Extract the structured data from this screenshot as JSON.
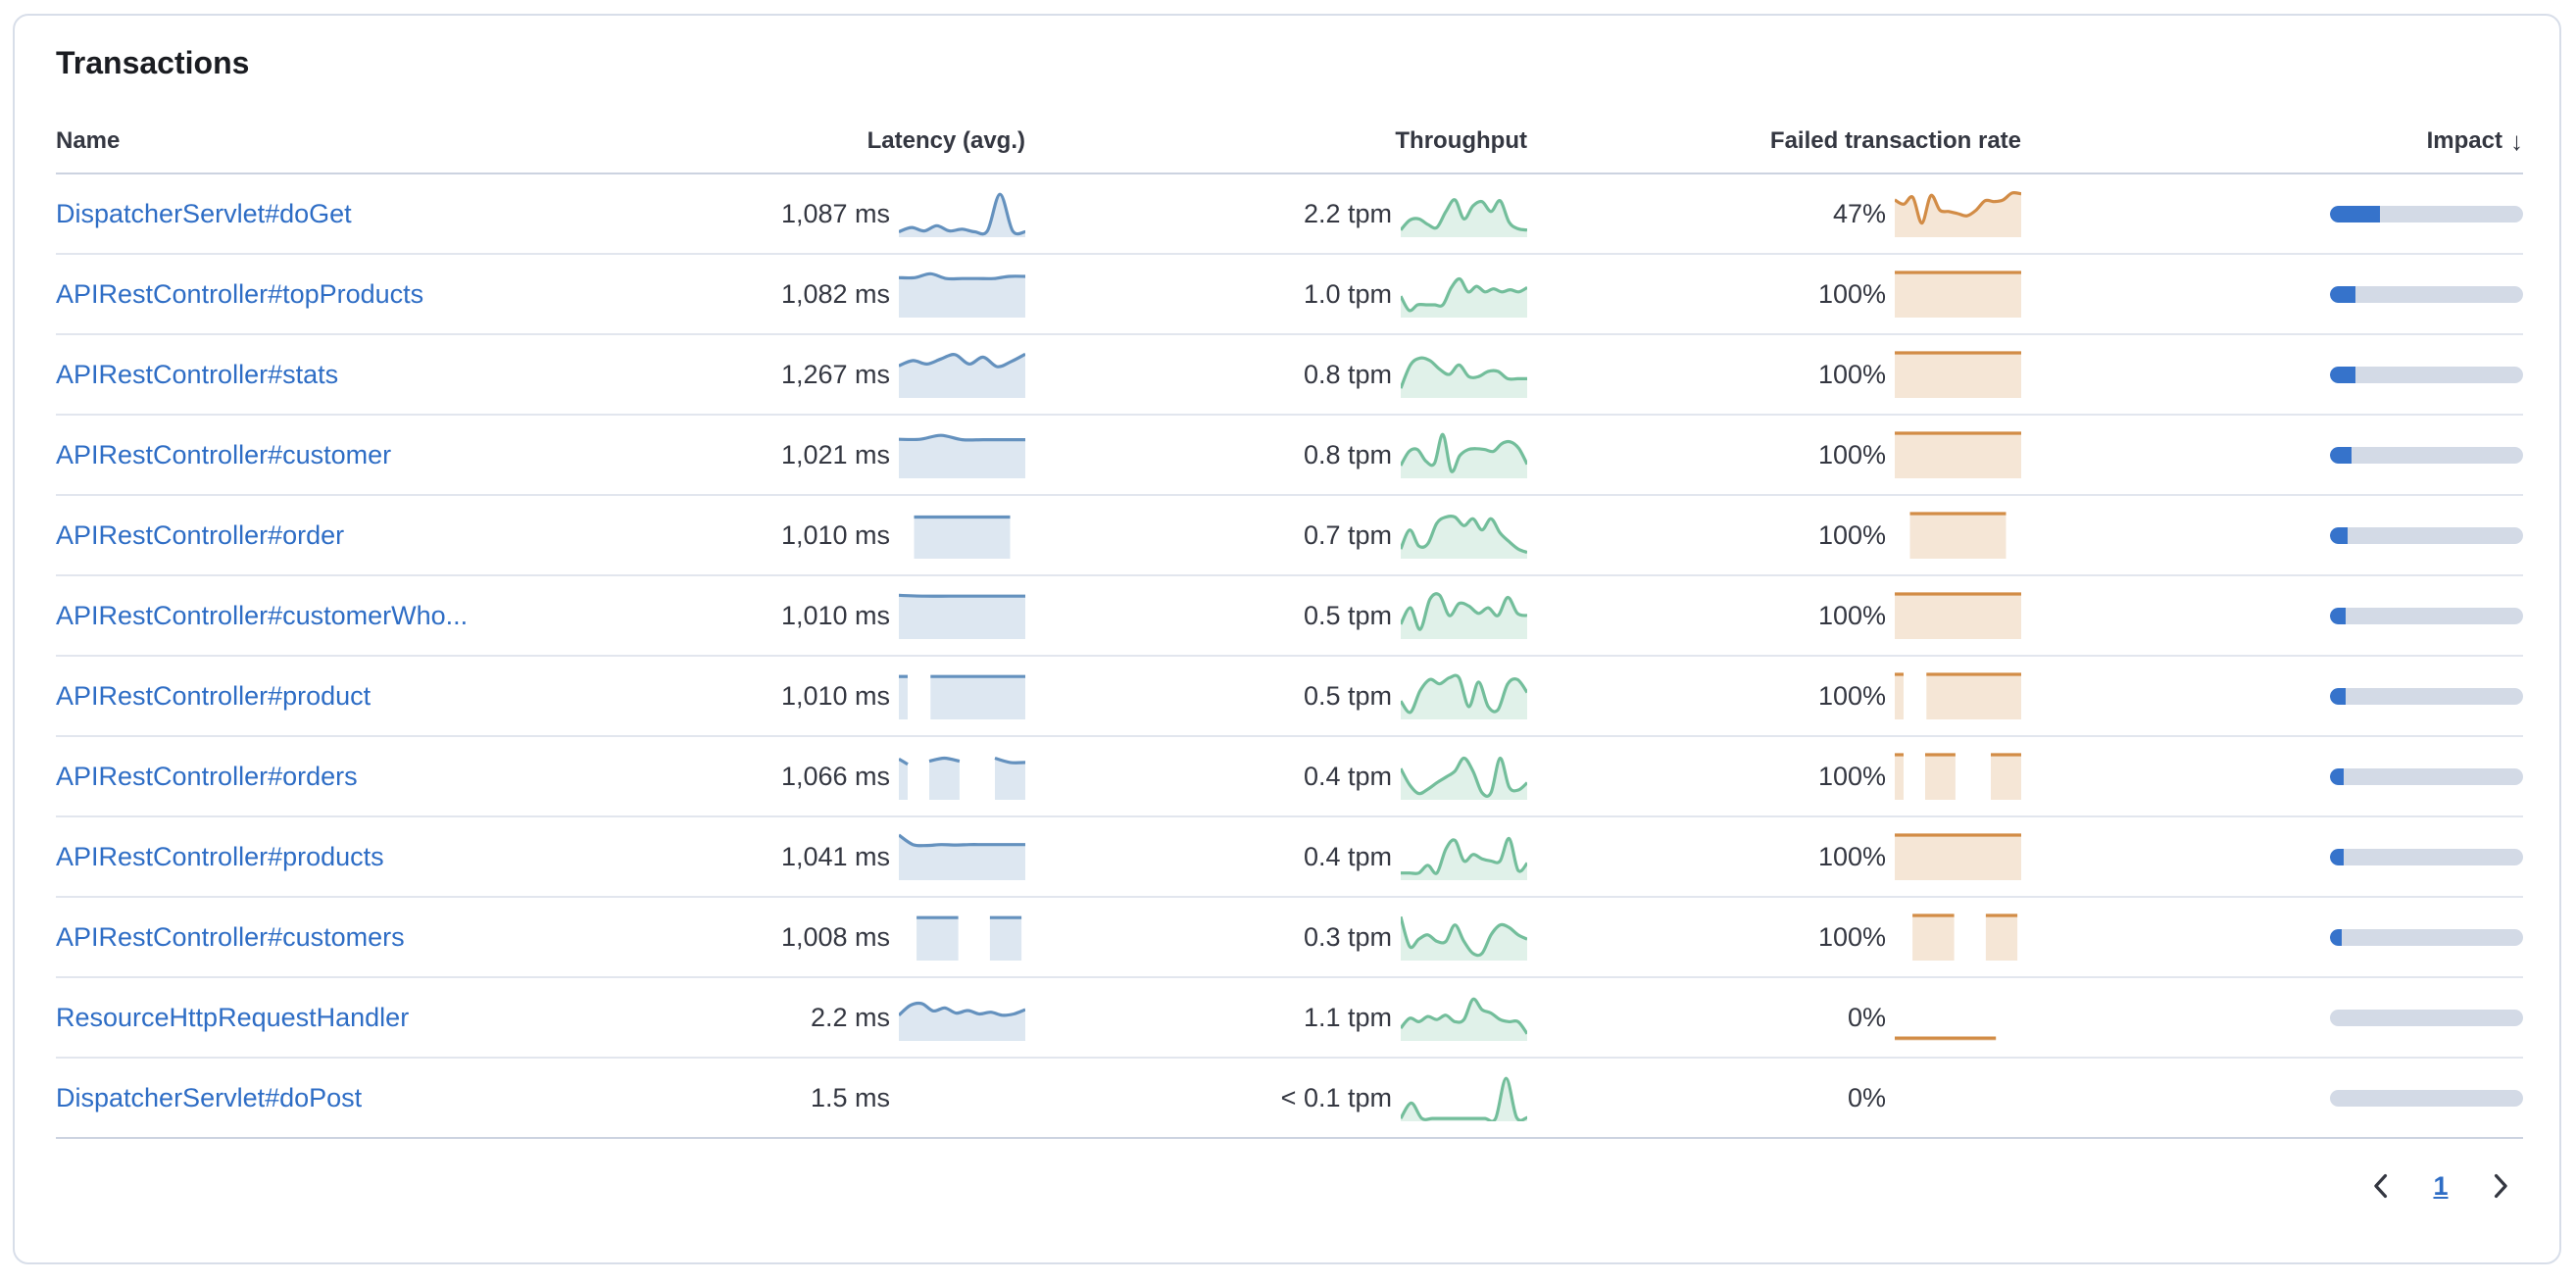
{
  "card": {
    "title": "Transactions"
  },
  "table": {
    "columns": [
      {
        "label": "Name"
      },
      {
        "label": "Latency (avg.)"
      },
      {
        "label": "Throughput"
      },
      {
        "label": "Failed transaction rate"
      },
      {
        "label": "Impact",
        "sort": "desc",
        "sort_icon": "↓"
      }
    ],
    "rows": [
      {
        "name": "DispatcherServlet#doGet",
        "latency": "1,087 ms",
        "throughput": "2.2 tpm",
        "failed_rate": "47%",
        "impact_pct": 26,
        "latency_spark": [
          [
            0,
            1,
            [
              8,
              18,
              10,
              22,
              10,
              14,
              8,
              10,
              95,
              10,
              8
            ]
          ]
        ],
        "throughput_spark": [
          [
            0,
            1,
            [
              12,
              35,
              38,
              25,
              18,
              55,
              82,
              38,
              68,
              78,
              55,
              80,
              30,
              15,
              12
            ]
          ]
        ],
        "failed_spark": [
          [
            0,
            1,
            [
              82,
              72,
              88,
              28,
              92,
              58,
              55,
              50,
              45,
              58,
              80,
              78,
              82,
              98,
              96
            ]
          ]
        ]
      },
      {
        "name": "APIRestController#topProducts",
        "latency": "1,082 ms",
        "throughput": "1.0 tpm",
        "failed_rate": "100%",
        "impact_pct": 13,
        "latency_spark": [
          [
            0,
            1,
            [
              88,
              88,
              97,
              86,
              86,
              86,
              86,
              91,
              91
            ]
          ]
        ],
        "throughput_spark": [
          [
            0,
            1,
            [
              45,
              12,
              25,
              25,
              25,
              25,
              65,
              85,
              55,
              68,
              55,
              62,
              55,
              60,
              55,
              65
            ]
          ]
        ],
        "failed_spark": [
          [
            0,
            1,
            [
              100,
              100
            ]
          ]
        ]
      },
      {
        "name": "APIRestController#stats",
        "latency": "1,267 ms",
        "throughput": "0.8 tpm",
        "failed_rate": "100%",
        "impact_pct": 13,
        "latency_spark": [
          [
            0,
            1,
            [
              70,
              82,
              74,
              86,
              96,
              74,
              90,
              68,
              80,
              97
            ]
          ]
        ],
        "throughput_spark": [
          [
            0,
            1,
            [
              18,
              72,
              88,
              82,
              62,
              50,
              72,
              45,
              45,
              57,
              57,
              40,
              40,
              40
            ]
          ]
        ],
        "failed_spark": [
          [
            0,
            1,
            [
              100,
              100
            ]
          ]
        ]
      },
      {
        "name": "APIRestController#customer",
        "latency": "1,021 ms",
        "throughput": "0.8 tpm",
        "failed_rate": "100%",
        "impact_pct": 11,
        "latency_spark": [
          [
            0,
            1,
            [
              86,
              86,
              95,
              85,
              85,
              85,
              85
            ]
          ]
        ],
        "throughput_spark": [
          [
            0,
            1,
            [
              25,
              58,
              62,
              35,
              30,
              97,
              12,
              48,
              62,
              64,
              62,
              58,
              76,
              80,
              65,
              28
            ]
          ]
        ],
        "failed_spark": [
          [
            0,
            1,
            [
              100,
              100
            ]
          ]
        ]
      },
      {
        "name": "APIRestController#order",
        "latency": "1,010 ms",
        "throughput": "0.7 tpm",
        "failed_rate": "100%",
        "impact_pct": 9,
        "latency_spark": [
          [
            0.12,
            0.88,
            [
              92,
              92
            ]
          ]
        ],
        "throughput_spark": [
          [
            0,
            1,
            [
              18,
              62,
              25,
              30,
              78,
              92,
              92,
              72,
              88,
              62,
              88,
              55,
              35,
              18,
              10
            ]
          ]
        ],
        "failed_spark": [
          [
            0.12,
            0.88,
            [
              100,
              100
            ]
          ]
        ]
      },
      {
        "name": "APIRestController#customerWho...",
        "latency": "1,010 ms",
        "throughput": "0.5 tpm",
        "failed_rate": "100%",
        "impact_pct": 8,
        "latency_spark": [
          [
            0,
            1,
            [
              97,
              95,
              95,
              95,
              95,
              95
            ]
          ]
        ],
        "throughput_spark": [
          [
            0,
            1,
            [
              30,
              68,
              18,
              88,
              97,
              50,
              78,
              72,
              55,
              68,
              50,
              92,
              55,
              50
            ]
          ]
        ],
        "failed_spark": [
          [
            0,
            1,
            [
              100,
              100
            ]
          ]
        ]
      },
      {
        "name": "APIRestController#product",
        "latency": "1,010 ms",
        "throughput": "0.5 tpm",
        "failed_rate": "100%",
        "impact_pct": 8,
        "latency_spark": [
          [
            0,
            0.07,
            [
              95,
              95
            ]
          ],
          [
            0.25,
            1,
            [
              95,
              95
            ]
          ]
        ],
        "throughput_spark": [
          [
            0,
            1,
            [
              38,
              12,
              62,
              88,
              78,
              92,
              92,
              25,
              82,
              25,
              18,
              78,
              88,
              58
            ]
          ]
        ],
        "failed_spark": [
          [
            0,
            0.07,
            [
              100,
              100
            ]
          ],
          [
            0.25,
            1,
            [
              100,
              100
            ]
          ]
        ]
      },
      {
        "name": "APIRestController#orders",
        "latency": "1,066 ms",
        "throughput": "0.4 tpm",
        "failed_rate": "100%",
        "impact_pct": 7,
        "latency_spark": [
          [
            0,
            0.07,
            [
              90,
              78
            ]
          ],
          [
            0.24,
            0.48,
            [
              85,
              92,
              85
            ]
          ],
          [
            0.76,
            1,
            [
              92,
              82,
              82
            ]
          ]
        ],
        "throughput_spark": [
          [
            0,
            1,
            [
              68,
              30,
              10,
              20,
              35,
              48,
              62,
              92,
              62,
              12,
              12,
              92,
              25,
              18,
              35
            ]
          ]
        ],
        "failed_spark": [
          [
            0,
            0.07,
            [
              100,
              100
            ]
          ],
          [
            0.24,
            0.48,
            [
              100,
              100
            ]
          ],
          [
            0.76,
            1,
            [
              100,
              100
            ]
          ]
        ]
      },
      {
        "name": "APIRestController#products",
        "latency": "1,041 ms",
        "throughput": "0.4 tpm",
        "failed_rate": "100%",
        "impact_pct": 7,
        "latency_spark": [
          [
            0,
            1,
            [
              100,
              78,
              76,
              78,
              77,
              78,
              78,
              78,
              78,
              78
            ]
          ]
        ],
        "throughput_spark": [
          [
            0,
            1,
            [
              12,
              12,
              12,
              30,
              12,
              68,
              88,
              40,
              55,
              45,
              40,
              40,
              92,
              18,
              35
            ]
          ]
        ],
        "failed_spark": [
          [
            0,
            1,
            [
              100,
              100
            ]
          ]
        ]
      },
      {
        "name": "APIRestController#customers",
        "latency": "1,008 ms",
        "throughput": "0.3 tpm",
        "failed_rate": "100%",
        "impact_pct": 6,
        "latency_spark": [
          [
            0.14,
            0.47,
            [
              95,
              95
            ]
          ],
          [
            0.72,
            0.97,
            [
              95,
              95
            ]
          ]
        ],
        "throughput_spark": [
          [
            0,
            1,
            [
              97,
              28,
              45,
              55,
              40,
              40,
              78,
              40,
              12,
              12,
              55,
              78,
              72,
              55,
              45
            ]
          ]
        ],
        "failed_spark": [
          [
            0.14,
            0.47,
            [
              100,
              100
            ]
          ],
          [
            0.72,
            0.97,
            [
              100,
              100
            ]
          ]
        ]
      },
      {
        "name": "ResourceHttpRequestHandler",
        "latency": "2.2 ms",
        "throughput": "1.1 tpm",
        "failed_rate": "0%",
        "impact_pct": 0,
        "latency_spark": [
          [
            0,
            1,
            [
              55,
              78,
              82,
              65,
              72,
              60,
              66,
              58,
              62,
              55,
              58,
              68
            ]
          ]
        ],
        "throughput_spark": [
          [
            0,
            1,
            [
              25,
              48,
              40,
              52,
              45,
              55,
              40,
              45,
              92,
              68,
              60,
              45,
              40,
              40,
              12
            ]
          ]
        ],
        "failed_spark": [
          [
            0,
            0.8,
            [
              2,
              2
            ]
          ]
        ]
      },
      {
        "name": "DispatcherServlet#doPost",
        "latency": "1.5 ms",
        "throughput": "< 0.1 tpm",
        "failed_rate": "0%",
        "impact_pct": 0,
        "latency_spark": [],
        "throughput_spark": [
          [
            0,
            1,
            [
              2,
              38,
              2,
              2,
              2,
              2,
              2,
              2,
              2,
              2,
              95,
              4,
              4
            ]
          ]
        ],
        "failed_spark": []
      }
    ]
  },
  "pagination": {
    "current_page": "1"
  },
  "colors": {
    "link": "#2e6dc5",
    "title": "#1a1c21",
    "text": "#343741",
    "latency_line": "#6491be",
    "throughput_line": "#73be9b",
    "failed_rate_line": "#d28c46",
    "impact_fill": "#3673cb",
    "impact_track": "#d3dae6",
    "card_border": "#d8dee9"
  }
}
